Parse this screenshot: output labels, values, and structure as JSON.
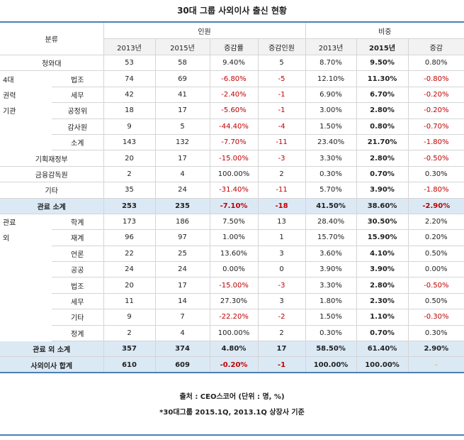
{
  "title": "30대 그룹 사외이사 출신 현황",
  "header": {
    "category": "분류",
    "group_people": "인원",
    "group_ratio": "비중",
    "cols": [
      "2013년",
      "2015년",
      "증감률",
      "증감인원",
      "2013년",
      "2015년",
      "증감"
    ]
  },
  "rows": [
    {
      "c": "청와대",
      "d": "",
      "v": [
        "53",
        "58",
        "9.40%",
        "5",
        "8.70%",
        "9.50%",
        "0.80%"
      ]
    },
    {
      "c": "4대",
      "d": "법조",
      "v": [
        "74",
        "69",
        "-6.80%",
        "-5",
        "12.10%",
        "11.30%",
        "-0.80%"
      ]
    },
    {
      "c": "권력",
      "d": "세무",
      "v": [
        "42",
        "41",
        "-2.40%",
        "-1",
        "6.90%",
        "6.70%",
        "-0.20%"
      ]
    },
    {
      "c": "기관",
      "d": "공정위",
      "v": [
        "18",
        "17",
        "-5.60%",
        "-1",
        "3.00%",
        "2.80%",
        "-0.20%"
      ]
    },
    {
      "c": "",
      "d": "감사원",
      "v": [
        "9",
        "5",
        "-44.40%",
        "-4",
        "1.50%",
        "0.80%",
        "-0.70%"
      ]
    },
    {
      "c": "",
      "d": "소계",
      "v": [
        "143",
        "132",
        "-7.70%",
        "-11",
        "23.40%",
        "21.70%",
        "-1.80%"
      ]
    },
    {
      "c": "기획재정부",
      "d": "",
      "v": [
        "20",
        "17",
        "-15.00%",
        "-3",
        "3.30%",
        "2.80%",
        "-0.50%"
      ]
    },
    {
      "c": "금융감독원",
      "d": "",
      "v": [
        "2",
        "4",
        "100.00%",
        "2",
        "0.30%",
        "0.70%",
        "0.30%"
      ]
    },
    {
      "c": "기타",
      "d": "",
      "v": [
        "35",
        "24",
        "-31.40%",
        "-11",
        "5.70%",
        "3.90%",
        "-1.80%"
      ]
    },
    {
      "c": "관료 소계",
      "d": "",
      "sub": true,
      "v": [
        "253",
        "235",
        "-7.10%",
        "-18",
        "41.50%",
        "38.60%",
        "-2.90%"
      ]
    },
    {
      "c": "관료",
      "d": "학계",
      "v": [
        "173",
        "186",
        "7.50%",
        "13",
        "28.40%",
        "30.50%",
        "2.20%"
      ]
    },
    {
      "c": "외",
      "d": "재계",
      "v": [
        "96",
        "97",
        "1.00%",
        "1",
        "15.70%",
        "15.90%",
        "0.20%"
      ]
    },
    {
      "c": "",
      "d": "언론",
      "v": [
        "22",
        "25",
        "13.60%",
        "3",
        "3.60%",
        "4.10%",
        "0.50%"
      ]
    },
    {
      "c": "",
      "d": "공공",
      "v": [
        "24",
        "24",
        "0.00%",
        "0",
        "3.90%",
        "3.90%",
        "0.00%"
      ]
    },
    {
      "c": "",
      "d": "법조",
      "v": [
        "20",
        "17",
        "-15.00%",
        "-3",
        "3.30%",
        "2.80%",
        "-0.50%"
      ]
    },
    {
      "c": "",
      "d": "세무",
      "v": [
        "11",
        "14",
        "27.30%",
        "3",
        "1.80%",
        "2.30%",
        "0.50%"
      ]
    },
    {
      "c": "",
      "d": "기타",
      "v": [
        "9",
        "7",
        "-22.20%",
        "-2",
        "1.50%",
        "1.10%",
        "-0.30%"
      ]
    },
    {
      "c": "",
      "d": "정계",
      "v": [
        "2",
        "4",
        "100.00%",
        "2",
        "0.30%",
        "0.70%",
        "0.30%"
      ]
    },
    {
      "c": "관료 외 소계",
      "d": "",
      "sub": true,
      "v": [
        "357",
        "374",
        "4.80%",
        "17",
        "58.50%",
        "61.40%",
        "2.90%"
      ]
    },
    {
      "c": "사외이사 합계",
      "d": "",
      "total": true,
      "v": [
        "610",
        "609",
        "-0.20%",
        "-1",
        "100.00%",
        "100.00%",
        "-"
      ]
    }
  ],
  "source": "출처 : CEO스코어 (단위 : 명, %)",
  "note": "*30대그룹 2015.1Q, 2013.1Q 상장사 기준",
  "colors": {
    "negative": "#c00000",
    "subtotal_bg": "#dbe9f5",
    "rule": "#4a7fb5"
  }
}
